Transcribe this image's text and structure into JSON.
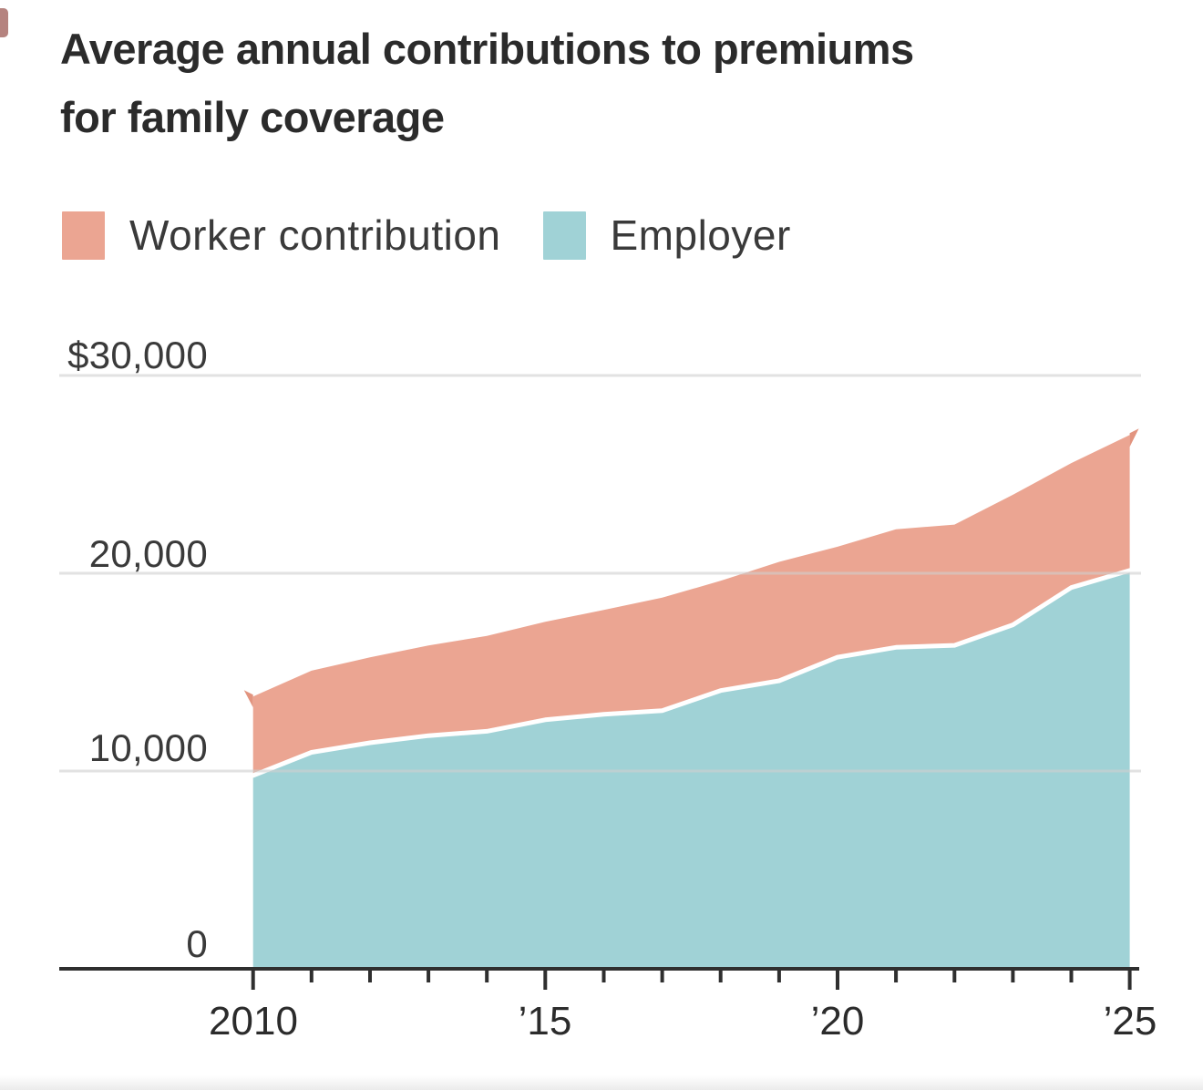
{
  "page": {
    "background": "#ffffff"
  },
  "header": {
    "title_line1": "Average annual contributions to premiums",
    "title_line2": "for family coverage"
  },
  "chart_data": {
    "type": "area",
    "stacked": true,
    "title": "Average annual contributions to premiums for family coverage",
    "x": [
      2010,
      2011,
      2012,
      2013,
      2014,
      2015,
      2016,
      2017,
      2018,
      2019,
      2020,
      2021,
      2022,
      2023,
      2024,
      2025
    ],
    "series": [
      {
        "name": "Worker contribution",
        "color": "#eba592",
        "values": [
          3997,
          4129,
          4316,
          4565,
          4823,
          4955,
          5277,
          5714,
          5547,
          6015,
          5588,
          5969,
          6106,
          6575,
          6296,
          6850
        ]
      },
      {
        "name": "Employer",
        "color": "#a0d2d6",
        "values": [
          9773,
          10944,
          11429,
          11786,
          12011,
          12591,
          12865,
          13049,
          14069,
          14561,
          15754,
          16253,
          16357,
          17393,
          19276,
          20143
        ]
      }
    ],
    "stack_order_bottom_to_top": [
      "Employer",
      "Worker contribution"
    ],
    "totals": [
      13770,
      15073,
      15745,
      16351,
      16834,
      17546,
      18142,
      18763,
      19616,
      20576,
      21342,
      22222,
      22463,
      23968,
      25572,
      26993
    ],
    "xlim": [
      2010,
      2025
    ],
    "ylim": [
      0,
      30000
    ],
    "y_ticks": [
      {
        "value": 30000,
        "label": "$30,000"
      },
      {
        "value": 20000,
        "label": "20,000"
      },
      {
        "value": 10000,
        "label": "10,000"
      },
      {
        "value": 0,
        "label": "0"
      }
    ],
    "x_ticks": [
      {
        "value": 2010,
        "label": "2010"
      },
      {
        "value": 2015,
        "label": "’15"
      },
      {
        "value": 2020,
        "label": "’20"
      },
      {
        "value": 2025,
        "label": "’25"
      }
    ],
    "grid": true,
    "legend_position": "top",
    "colors": {
      "worker": "#eba592",
      "worker_overlap_cap": "#e2947f",
      "employer": "#a0d2d6",
      "separator": "#ffffff",
      "grid": "#e4e4e4",
      "axis": "#2f2f2f",
      "title_text": "#2b2b2b",
      "label_text": "#3a3a3a"
    }
  }
}
